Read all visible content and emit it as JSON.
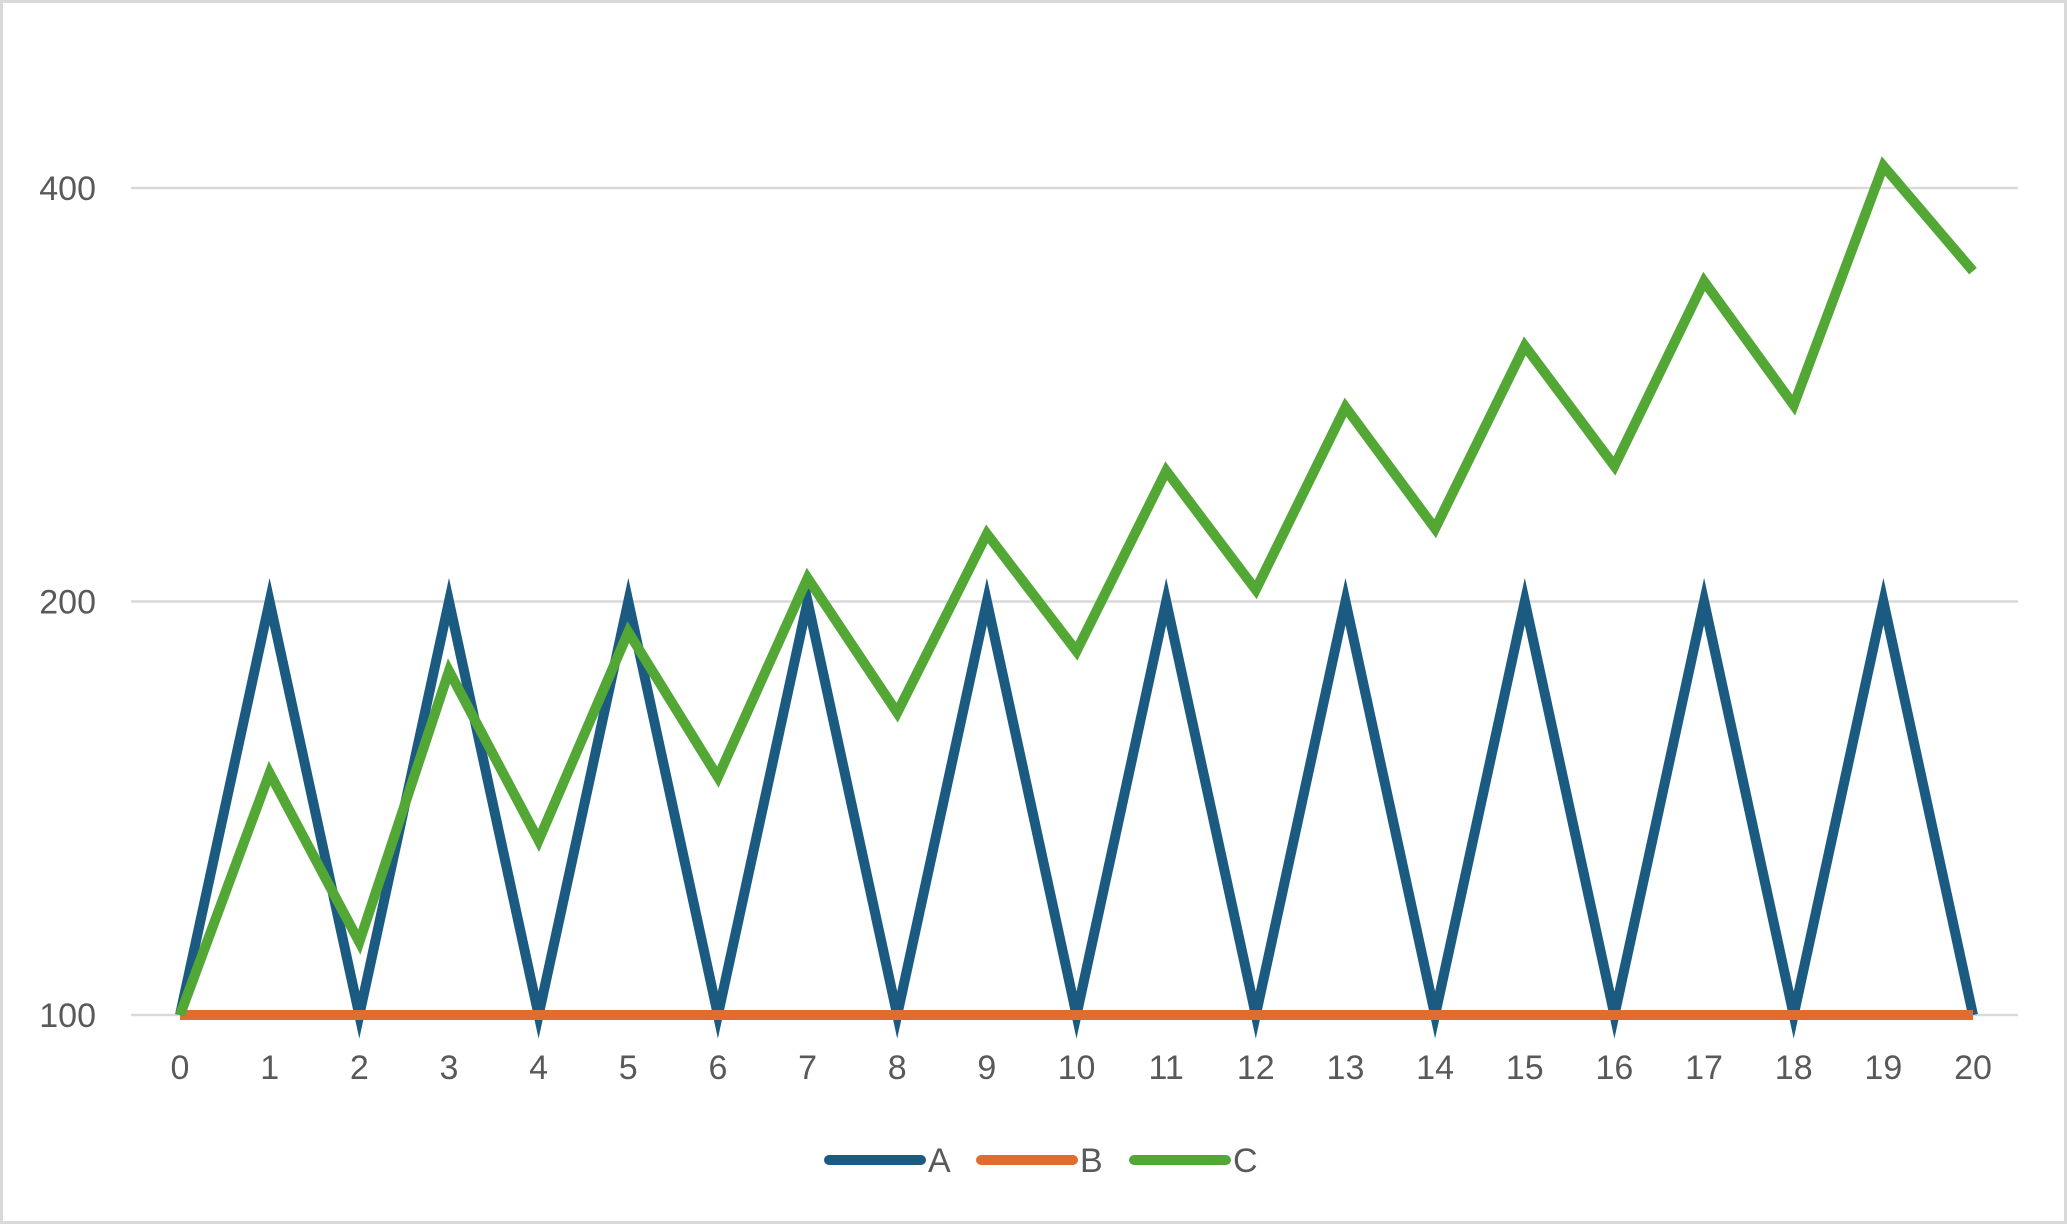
{
  "chart_data": {
    "type": "line",
    "title": "",
    "xlabel": "",
    "ylabel": "",
    "x": [
      0,
      1,
      2,
      3,
      4,
      5,
      6,
      7,
      8,
      9,
      10,
      11,
      12,
      13,
      14,
      15,
      16,
      17,
      18,
      19,
      20
    ],
    "y_scale": "log",
    "ylim": [
      100,
      440
    ],
    "y_ticks": [
      100,
      200,
      400
    ],
    "grid": true,
    "legend_position": "bottom",
    "series": [
      {
        "name": "A",
        "color": "#1b5b82",
        "values": [
          100,
          200,
          100,
          200,
          100,
          200,
          100,
          200,
          100,
          200,
          100,
          200,
          100,
          200,
          100,
          200,
          100,
          200,
          100,
          200,
          100
        ]
      },
      {
        "name": "B",
        "color": "#e06c30",
        "values": [
          100,
          100,
          100,
          100,
          100,
          100,
          100,
          100,
          100,
          100,
          100,
          100,
          100,
          100,
          100,
          100,
          100,
          100,
          100,
          100,
          100
        ]
      },
      {
        "name": "C",
        "color": "#53a735",
        "values": [
          100,
          150,
          113,
          178,
          134,
          190,
          149,
          208,
          166,
          224,
          184,
          249,
          204,
          277,
          226,
          307,
          251,
          342,
          278,
          415,
          348
        ]
      }
    ]
  }
}
